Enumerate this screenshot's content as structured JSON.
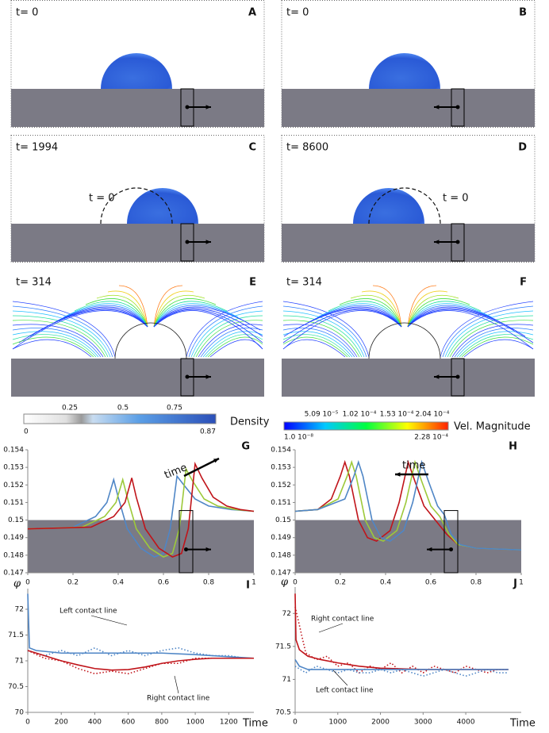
{
  "panels": [
    {
      "label": "A",
      "time": "t= 0"
    },
    {
      "label": "B",
      "time": "t= 0"
    },
    {
      "label": "C",
      "time": "t= 1994",
      "annotation": "t = 0"
    },
    {
      "label": "D",
      "time": "t= 8600",
      "annotation": "t = 0"
    },
    {
      "label": "E",
      "time": "t= 314"
    },
    {
      "label": "F",
      "time": "t= 314"
    }
  ],
  "colorbars": [
    {
      "title": "Density",
      "labels": [
        "0.25",
        "0.5",
        "0.75"
      ],
      "min": "0",
      "max": "0.87"
    },
    {
      "title": "Vel. Magnitude",
      "labels": [
        "5.09 10⁻⁵",
        "1.02 10⁻⁴",
        "1.53 10⁻⁴",
        "2.04 10⁻⁴"
      ],
      "min": "1.0 10⁻⁸",
      "max": "2.28 10⁻⁴"
    }
  ],
  "chart_data": [
    {
      "type": "line",
      "label": "G",
      "annotation": "time",
      "xlim": [
        0,
        1
      ],
      "xticks": [
        0,
        0.2,
        0.4,
        0.6,
        0.8,
        1
      ],
      "ylim": [
        0.147,
        0.154
      ],
      "yticks": [
        0.147,
        0.148,
        0.149,
        0.15,
        0.151,
        0.152,
        0.153,
        0.154
      ],
      "series": [
        {
          "color": "#4f86c6",
          "x": [
            0,
            0.2,
            0.3,
            0.35,
            0.38,
            0.4,
            0.44,
            0.5,
            0.56,
            0.6,
            0.63,
            0.66,
            0.69,
            0.74,
            0.8,
            0.9,
            1
          ],
          "values": [
            0.1495,
            0.1496,
            0.1502,
            0.151,
            0.1523,
            0.1513,
            0.1495,
            0.1484,
            0.1479,
            0.1481,
            0.1495,
            0.1525,
            0.152,
            0.1512,
            0.1508,
            0.1506,
            0.1505
          ]
        },
        {
          "color": "#9dc93a",
          "x": [
            0,
            0.24,
            0.34,
            0.39,
            0.42,
            0.44,
            0.48,
            0.54,
            0.6,
            0.64,
            0.67,
            0.7,
            0.73,
            0.78,
            0.84,
            0.92,
            1
          ],
          "values": [
            0.1495,
            0.1496,
            0.1502,
            0.151,
            0.1523,
            0.1513,
            0.1495,
            0.1484,
            0.1479,
            0.1481,
            0.1495,
            0.1529,
            0.1522,
            0.1512,
            0.1508,
            0.1506,
            0.1505
          ]
        },
        {
          "color": "#c0141a",
          "x": [
            0,
            0.28,
            0.38,
            0.43,
            0.46,
            0.48,
            0.52,
            0.58,
            0.64,
            0.68,
            0.71,
            0.74,
            0.77,
            0.82,
            0.88,
            0.94,
            1
          ],
          "values": [
            0.1495,
            0.1496,
            0.1502,
            0.151,
            0.1524,
            0.1513,
            0.1495,
            0.1484,
            0.1479,
            0.1481,
            0.1495,
            0.1532,
            0.1524,
            0.1513,
            0.1508,
            0.1506,
            0.1505
          ]
        }
      ]
    },
    {
      "type": "line",
      "label": "H",
      "annotation": "time",
      "xlim": [
        0,
        1
      ],
      "xticks": [
        0,
        0.2,
        0.4,
        0.6,
        0.8,
        1
      ],
      "ylim": [
        0.147,
        0.154
      ],
      "yticks": [
        0.147,
        0.148,
        0.149,
        0.15,
        0.151,
        0.152,
        0.153,
        0.154
      ],
      "series": [
        {
          "color": "#c0141a",
          "x": [
            0,
            0.1,
            0.16,
            0.2,
            0.22,
            0.24,
            0.28,
            0.32,
            0.36,
            0.42,
            0.46,
            0.5,
            0.53,
            0.57,
            0.62,
            0.67,
            0.72,
            0.8,
            1
          ],
          "values": [
            0.1505,
            0.1506,
            0.1512,
            0.1525,
            0.1533,
            0.1525,
            0.15,
            0.149,
            0.1488,
            0.1494,
            0.151,
            0.1533,
            0.1522,
            0.1508,
            0.15,
            0.1492,
            0.1486,
            0.1484,
            0.1483
          ]
        },
        {
          "color": "#9dc93a",
          "x": [
            0,
            0.1,
            0.19,
            0.23,
            0.25,
            0.27,
            0.31,
            0.35,
            0.39,
            0.45,
            0.49,
            0.53,
            0.56,
            0.6,
            0.64,
            0.68,
            0.72,
            0.8,
            1
          ],
          "values": [
            0.1505,
            0.1506,
            0.1512,
            0.1525,
            0.1533,
            0.1525,
            0.15,
            0.149,
            0.1488,
            0.1494,
            0.151,
            0.1533,
            0.1522,
            0.1508,
            0.1502,
            0.1492,
            0.1486,
            0.1484,
            0.1483
          ]
        },
        {
          "color": "#4f86c6",
          "x": [
            0,
            0.1,
            0.22,
            0.26,
            0.28,
            0.3,
            0.34,
            0.38,
            0.42,
            0.48,
            0.52,
            0.56,
            0.59,
            0.63,
            0.66,
            0.69,
            0.73,
            0.8,
            1
          ],
          "values": [
            0.1505,
            0.1506,
            0.1512,
            0.1525,
            0.1533,
            0.1525,
            0.15,
            0.149,
            0.1488,
            0.1494,
            0.151,
            0.1533,
            0.1522,
            0.1508,
            0.1503,
            0.1492,
            0.1486,
            0.1484,
            0.1483
          ]
        }
      ]
    },
    {
      "type": "line",
      "label": "I",
      "ylabel": "φ",
      "xlabel": "Time",
      "xlim": [
        0,
        1350
      ],
      "xticks": [
        0,
        200,
        400,
        600,
        800,
        1000,
        1200
      ],
      "ylim": [
        70,
        72.4
      ],
      "yticks": [
        70,
        70.5,
        71,
        71.5,
        72
      ],
      "series": [
        {
          "color": "#c0141a",
          "dotted": true,
          "x": [
            0,
            100,
            200,
            300,
            400,
            500,
            600,
            700,
            800,
            900,
            1000,
            1100,
            1200,
            1300
          ],
          "values": [
            71.2,
            71.05,
            71.0,
            70.85,
            70.75,
            70.8,
            70.75,
            70.85,
            70.95,
            70.95,
            71.05,
            71.05,
            71.05,
            71.05
          ]
        },
        {
          "color": "#4f86c6",
          "dotted": true,
          "x": [
            0,
            100,
            200,
            300,
            400,
            500,
            600,
            700,
            800,
            900,
            1000,
            1100,
            1200,
            1300
          ],
          "values": [
            71.2,
            71.1,
            71.2,
            71.1,
            71.25,
            71.1,
            71.2,
            71.1,
            71.2,
            71.25,
            71.15,
            71.1,
            71.1,
            71.05
          ]
        },
        {
          "name": "Left contact line",
          "color": "#4f86c6",
          "x": [
            0,
            10,
            50,
            200,
            400,
            600,
            800,
            1000,
            1200,
            1350
          ],
          "values": [
            72.3,
            71.25,
            71.2,
            71.15,
            71.15,
            71.15,
            71.15,
            71.12,
            71.08,
            71.05
          ]
        },
        {
          "name": "Right contact line",
          "color": "#c0141a",
          "x": [
            0,
            100,
            200,
            300,
            400,
            500,
            600,
            700,
            800,
            900,
            1000,
            1100,
            1200,
            1350
          ],
          "values": [
            71.2,
            71.1,
            71.0,
            70.92,
            70.85,
            70.82,
            70.83,
            70.88,
            70.95,
            71.0,
            71.03,
            71.05,
            71.05,
            71.05
          ]
        }
      ]
    },
    {
      "type": "line",
      "label": "J",
      "ylabel": "φ",
      "xlabel": "Time",
      "xlim": [
        0,
        5300
      ],
      "xticks": [
        0,
        1000,
        2000,
        3000,
        4000
      ],
      "ylim": [
        70.5,
        72.4
      ],
      "yticks": [
        70.5,
        71,
        71.5,
        72
      ],
      "series": [
        {
          "color": "#c0141a",
          "dotted": true,
          "x": [
            0,
            250,
            500,
            750,
            1000,
            1250,
            1500,
            1750,
            2000,
            2250,
            2500,
            2750,
            3000,
            3250,
            3500,
            3750,
            4000,
            4250,
            4500,
            4750,
            5000
          ],
          "values": [
            72.1,
            71.4,
            71.3,
            71.35,
            71.2,
            71.25,
            71.1,
            71.2,
            71.15,
            71.25,
            71.1,
            71.2,
            71.1,
            71.2,
            71.15,
            71.1,
            71.2,
            71.15,
            71.1,
            71.15,
            71.15
          ]
        },
        {
          "color": "#4f86c6",
          "dotted": true,
          "x": [
            0,
            250,
            500,
            750,
            1000,
            1250,
            1500,
            1750,
            2000,
            2250,
            2500,
            2750,
            3000,
            3250,
            3500,
            3750,
            4000,
            4250,
            4500,
            4750,
            5000
          ],
          "values": [
            71.2,
            71.1,
            71.2,
            71.15,
            71.1,
            71.15,
            71.1,
            71.1,
            71.15,
            71.1,
            71.15,
            71.1,
            71.05,
            71.1,
            71.15,
            71.1,
            71.05,
            71.1,
            71.15,
            71.1,
            71.1
          ]
        },
        {
          "name": "Right contact line",
          "color": "#c0141a",
          "x": [
            0,
            20,
            100,
            300,
            600,
            1000,
            1500,
            2000,
            3000,
            4000,
            5000
          ],
          "values": [
            72.3,
            71.6,
            71.45,
            71.35,
            71.3,
            71.25,
            71.2,
            71.17,
            71.15,
            71.15,
            71.15
          ]
        },
        {
          "name": "Left contact line",
          "color": "#4f86c6",
          "x": [
            0,
            100,
            300,
            1000,
            2000,
            3000,
            4000,
            5000
          ],
          "values": [
            71.3,
            71.2,
            71.15,
            71.15,
            71.15,
            71.15,
            71.15,
            71.15
          ]
        }
      ]
    }
  ]
}
